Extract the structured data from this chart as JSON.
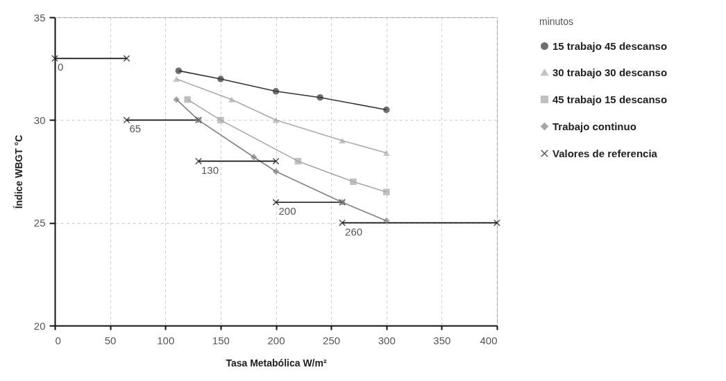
{
  "chart_data": {
    "type": "line",
    "xlabel": "Tasa Metabólica W/m²",
    "ylabel": "Índice WBGT °C",
    "legend_title": "minutos",
    "xlim": [
      0,
      400
    ],
    "xticks": [
      0,
      50,
      100,
      150,
      200,
      250,
      300,
      350,
      400
    ],
    "ylim": [
      20,
      35
    ],
    "yticks": [
      20,
      25,
      30,
      35
    ],
    "grid": true,
    "legend": "right",
    "series": [
      {
        "name": "15 trabajo 45 descanso",
        "color": "#333333",
        "marker": "circle",
        "x": [
          112,
          150,
          200,
          240,
          300
        ],
        "values": [
          32.4,
          32.0,
          31.4,
          31.1,
          30.5
        ]
      },
      {
        "name": "30 trabajo 30 descanso",
        "color": "#aaaaaa",
        "marker": "triangle",
        "x": [
          110,
          160,
          200,
          260,
          300
        ],
        "values": [
          32.0,
          31.0,
          30.0,
          29.0,
          28.4
        ]
      },
      {
        "name": "45 trabajo 15 descanso",
        "color": "#a6a6a6",
        "marker": "square",
        "x": [
          120,
          150,
          220,
          270,
          300
        ],
        "values": [
          31.0,
          30.0,
          28.0,
          27.0,
          26.5
        ]
      },
      {
        "name": "Trabajo continuo",
        "color": "#808080",
        "marker": "diamond",
        "x": [
          110,
          130,
          180,
          200,
          260,
          300
        ],
        "values": [
          31.0,
          30.0,
          28.2,
          27.5,
          26.0,
          25.1
        ]
      },
      {
        "name": "Valores de referencia",
        "color": "#111111",
        "marker": "cross",
        "x": [
          0,
          65,
          null,
          65,
          130,
          null,
          130,
          200,
          null,
          200,
          260,
          null,
          260,
          400
        ],
        "values": [
          33,
          33,
          null,
          30,
          30,
          null,
          28,
          28,
          null,
          26,
          26,
          null,
          25,
          25
        ]
      }
    ],
    "annotations": [
      {
        "text": "0",
        "x": 0,
        "y": 33
      },
      {
        "text": "65",
        "x": 65,
        "y": 30
      },
      {
        "text": "130",
        "x": 130,
        "y": 28
      },
      {
        "text": "200",
        "x": 200,
        "y": 26
      },
      {
        "text": "260",
        "x": 260,
        "y": 25
      }
    ]
  }
}
